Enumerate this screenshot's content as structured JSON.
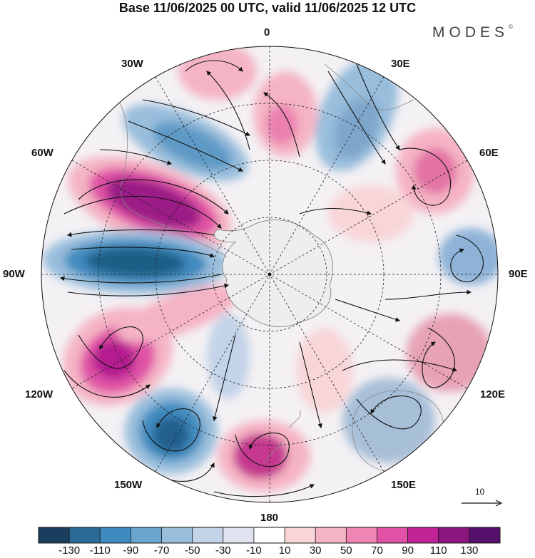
{
  "title": "Base 11/06/2025 00 UTC, valid 11/06/2025 12 UTC",
  "brand": "MODES",
  "brand_mark": "©",
  "longitude_labels": {
    "n0": "0",
    "e30": "30E",
    "e60": "60E",
    "e90": "90E",
    "e120": "120E",
    "e150": "150E",
    "s180": "180",
    "w150": "150W",
    "w120": "120W",
    "w90": "90W",
    "w60": "60W",
    "w30": "30W"
  },
  "reference_vector": {
    "label": "10"
  },
  "colorbar": {
    "colors": [
      "#1b3d5e",
      "#2c6a96",
      "#3f8bbf",
      "#6aa5cf",
      "#99bedc",
      "#c3d3e8",
      "#e2e3f0",
      "#ffffff",
      "#f8d6d8",
      "#f5b4c4",
      "#ef85b4",
      "#e052a6",
      "#bf2396",
      "#8c157f",
      "#55106b"
    ],
    "tick_labels": [
      "-130",
      "-110",
      "-90",
      "-70",
      "-50",
      "-30",
      "-10",
      "10",
      "30",
      "50",
      "70",
      "90",
      "110",
      "130"
    ]
  },
  "anomaly_centers": [
    {
      "name": "center-60w-pos",
      "value": 120,
      "color": "#9b1b86"
    },
    {
      "name": "center-85w-neg",
      "value": -120,
      "color": "#1f5f86"
    },
    {
      "name": "center-120w-pos",
      "value": 100,
      "color": "#b51d90"
    },
    {
      "name": "center-150w-neg",
      "value": -110,
      "color": "#245f8c"
    },
    {
      "name": "center-175e-pos",
      "value": 90,
      "color": "#c4388f"
    },
    {
      "name": "center-140e-neg",
      "value": -40,
      "color": "#a8bfd8"
    },
    {
      "name": "center-110e-pos",
      "value": 50,
      "color": "#e7a2b6"
    },
    {
      "name": "center-85e-neg",
      "value": -50,
      "color": "#8fb3d8"
    },
    {
      "name": "center-55e-pos",
      "value": 70,
      "color": "#e373a5"
    },
    {
      "name": "center-25e-neg",
      "value": -60,
      "color": "#7ea6cb"
    },
    {
      "name": "center-5e-pos",
      "value": 60,
      "color": "#ea7fb0"
    },
    {
      "name": "center-35w-neg",
      "value": -70,
      "color": "#5e9ac6"
    }
  ]
}
